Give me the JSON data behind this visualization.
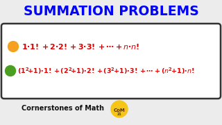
{
  "title": "SUMMATION PROBLEMS",
  "title_color": "#0000ff",
  "title_fontsize": 13.5,
  "bg_color": "#ececec",
  "box_bg": "#ffffff",
  "box_edge_color": "#333333",
  "orange_color": "#f5a020",
  "green_color": "#4a9e20",
  "formula_color": "#dd0000",
  "formula1_fs": 8.0,
  "formula2_fs": 6.8,
  "footer": "Cornerstones of Math",
  "footer_color": "#111111",
  "footer_fs": 7.0,
  "coin_color": "#f5c518",
  "coin_text": "CoM",
  "coin_text_color": "#5a3000"
}
